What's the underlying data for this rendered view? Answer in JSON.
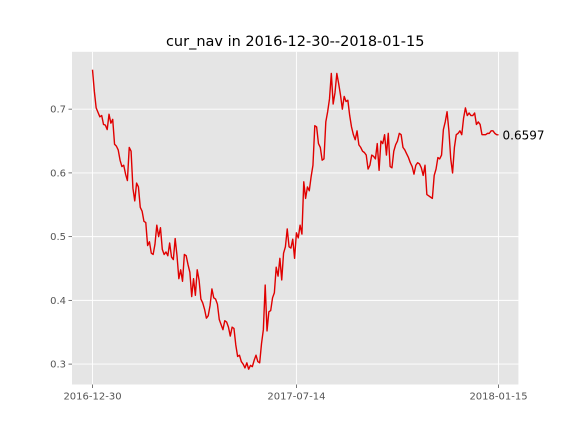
{
  "chart_data": {
    "type": "line",
    "title": "cur_nav in 2016-12-30--2018-01-15",
    "xlabel": "",
    "ylabel": "",
    "x_tick_labels": [
      "2016-12-30",
      "2017-07-14",
      "2018-01-15"
    ],
    "y_ticks": [
      0.3,
      0.4,
      0.5,
      0.6,
      0.7
    ],
    "y_tick_labels": [
      "0.3",
      "0.4",
      "0.5",
      "0.6",
      "0.7"
    ],
    "ylim": [
      0.268,
      0.79
    ],
    "grid": true,
    "background": "#e5e5e5",
    "series": [
      {
        "color": "#e00000",
        "x_start": "2016-12-30",
        "x_end": "2018-01-15",
        "values": [
          0.762,
          0.728,
          0.702,
          0.695,
          0.688,
          0.69,
          0.676,
          0.675,
          0.668,
          0.692,
          0.678,
          0.684,
          0.645,
          0.642,
          0.636,
          0.62,
          0.61,
          0.612,
          0.598,
          0.588,
          0.64,
          0.634,
          0.576,
          0.556,
          0.584,
          0.578,
          0.546,
          0.54,
          0.524,
          0.522,
          0.486,
          0.492,
          0.474,
          0.472,
          0.488,
          0.518,
          0.5,
          0.514,
          0.48,
          0.472,
          0.476,
          0.47,
          0.49,
          0.468,
          0.464,
          0.497,
          0.47,
          0.434,
          0.448,
          0.43,
          0.472,
          0.47,
          0.456,
          0.444,
          0.406,
          0.434,
          0.408,
          0.448,
          0.432,
          0.402,
          0.396,
          0.386,
          0.372,
          0.376,
          0.392,
          0.418,
          0.404,
          0.402,
          0.394,
          0.37,
          0.362,
          0.354,
          0.368,
          0.366,
          0.358,
          0.344,
          0.358,
          0.356,
          0.33,
          0.312,
          0.314,
          0.304,
          0.3,
          0.294,
          0.302,
          0.292,
          0.298,
          0.296,
          0.306,
          0.314,
          0.304,
          0.302,
          0.332,
          0.354,
          0.424,
          0.352,
          0.382,
          0.384,
          0.404,
          0.412,
          0.452,
          0.438,
          0.466,
          0.432,
          0.474,
          0.484,
          0.512,
          0.484,
          0.482,
          0.496,
          0.466,
          0.506,
          0.498,
          0.518,
          0.504,
          0.586,
          0.56,
          0.578,
          0.572,
          0.594,
          0.612,
          0.674,
          0.672,
          0.646,
          0.64,
          0.62,
          0.622,
          0.68,
          0.696,
          0.716,
          0.756,
          0.708,
          0.726,
          0.756,
          0.74,
          0.722,
          0.7,
          0.72,
          0.712,
          0.714,
          0.69,
          0.672,
          0.66,
          0.652,
          0.666,
          0.644,
          0.64,
          0.634,
          0.632,
          0.628,
          0.606,
          0.612,
          0.628,
          0.626,
          0.622,
          0.646,
          0.604,
          0.65,
          0.646,
          0.66,
          0.628,
          0.662,
          0.61,
          0.608,
          0.634,
          0.644,
          0.65,
          0.662,
          0.66,
          0.64,
          0.636,
          0.63,
          0.624,
          0.616,
          0.61,
          0.598,
          0.612,
          0.616,
          0.614,
          0.608,
          0.596,
          0.612,
          0.566,
          0.564,
          0.562,
          0.56,
          0.596,
          0.606,
          0.624,
          0.622,
          0.628,
          0.668,
          0.68,
          0.696,
          0.666,
          0.622,
          0.6,
          0.64,
          0.66,
          0.662,
          0.666,
          0.66,
          0.686,
          0.702,
          0.69,
          0.694,
          0.69,
          0.69,
          0.694,
          0.676,
          0.68,
          0.676,
          0.66,
          0.66,
          0.66,
          0.662,
          0.662,
          0.666,
          0.666,
          0.662,
          0.66,
          0.6597
        ]
      }
    ],
    "end_annotation": "0.6597"
  }
}
